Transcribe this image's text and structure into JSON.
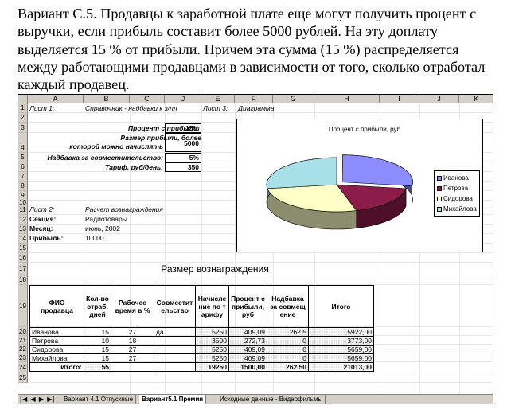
{
  "paragraph": {
    "lines": [
      "Вариант С.5. Продавцы к заработной плате еще могут получить процент с",
      "выручки, если прибыль составит более 5000 рублей. На эту доплату",
      "выделяется 15 % от прибыли. Причем эта сумма (15 %) распределяется",
      "между работающими продавцами в зависимости от того, сколько отработал",
      "каждый продавец."
    ]
  },
  "columns": [
    "A",
    "B",
    "C",
    "D",
    "E",
    "F",
    "G",
    "H",
    "I",
    "J",
    "K"
  ],
  "rows": [
    "1",
    "2",
    "3",
    "4",
    "5",
    "6",
    "7",
    "8",
    "9",
    "10",
    "11",
    "12",
    "13",
    "14",
    "15",
    "16",
    "17",
    "18",
    "19",
    "20",
    "21",
    "22",
    "23",
    "24",
    "25"
  ],
  "sheet1": {
    "sheet1_label": "Лист 1:",
    "sheet1_title": "Справочник - надбавки к з/пл",
    "sheet3_label": "Лист 3:",
    "sheet3_title": "Диаграмма",
    "percent_label": "Процент с прибыли:",
    "percent_value": "15%",
    "threshold_label_1": "Размер прибыли, более",
    "threshold_label_2": "которой можно начислять",
    "threshold_value": "5000",
    "bonus_label": "Надбавка за совместительство:",
    "bonus_value": "5%",
    "tariff_label": "Тариф, руб/день:",
    "tariff_value": "350"
  },
  "sheet2": {
    "label": "Лист 2:",
    "title": "Расчет вознаграждения",
    "section_label": "Секция:",
    "section_value": "Радиотовары",
    "month_label": "Месяц:",
    "month_value": "июнь, 2002",
    "profit_label": "Прибыль:",
    "profit_value": "10000"
  },
  "table": {
    "title": "Размер вознаграждения",
    "headers": [
      "ФИО продавца",
      "Кол-во отраб. дней",
      "Рабочее время в %",
      "Совместительство",
      "Начисление по тарифу",
      "Процент с прибыли, руб",
      "Надбавка за совмещение",
      "Итого"
    ],
    "rows": [
      {
        "name": "Иванова",
        "days": "15",
        "time": "27",
        "combo": "да",
        "tariff": "5250",
        "percent": "409,09",
        "bonus": "262,5",
        "total": "5922,00"
      },
      {
        "name": "Петрова",
        "days": "10",
        "time": "18",
        "combo": "",
        "tariff": "3500",
        "percent": "272,73",
        "bonus": "0",
        "total": "3773,00"
      },
      {
        "name": "Сидорова",
        "days": "15",
        "time": "27",
        "combo": "",
        "tariff": "5250",
        "percent": "409,09",
        "bonus": "0",
        "total": "5659,00"
      },
      {
        "name": "Михайлова",
        "days": "15",
        "time": "27",
        "combo": "",
        "tariff": "5250",
        "percent": "409,09",
        "bonus": "0",
        "total": "5659,00"
      }
    ],
    "total": {
      "label": "Итого:",
      "days": "55",
      "tariff": "19250",
      "percent": "1500,00",
      "bonus": "262,50",
      "total": "21013,00"
    }
  },
  "chart_data": {
    "type": "pie",
    "title": "Процент с прибыли, руб",
    "categories": [
      "Иванова",
      "Петрова",
      "Сидорова",
      "Михайлова"
    ],
    "values": [
      409.09,
      272.73,
      409.09,
      409.09
    ],
    "colors": [
      "#8c8cff",
      "#8c1c4a",
      "#ffffc8",
      "#a8e0e8"
    ],
    "legend": "right"
  },
  "tabs": {
    "nav": "|◀ ◀ ▶ ▶|",
    "items": [
      "Вариант 4.1 Отпускные",
      "Вариант5.1 Премия",
      "Исходные данные - Видеофильмы"
    ]
  }
}
